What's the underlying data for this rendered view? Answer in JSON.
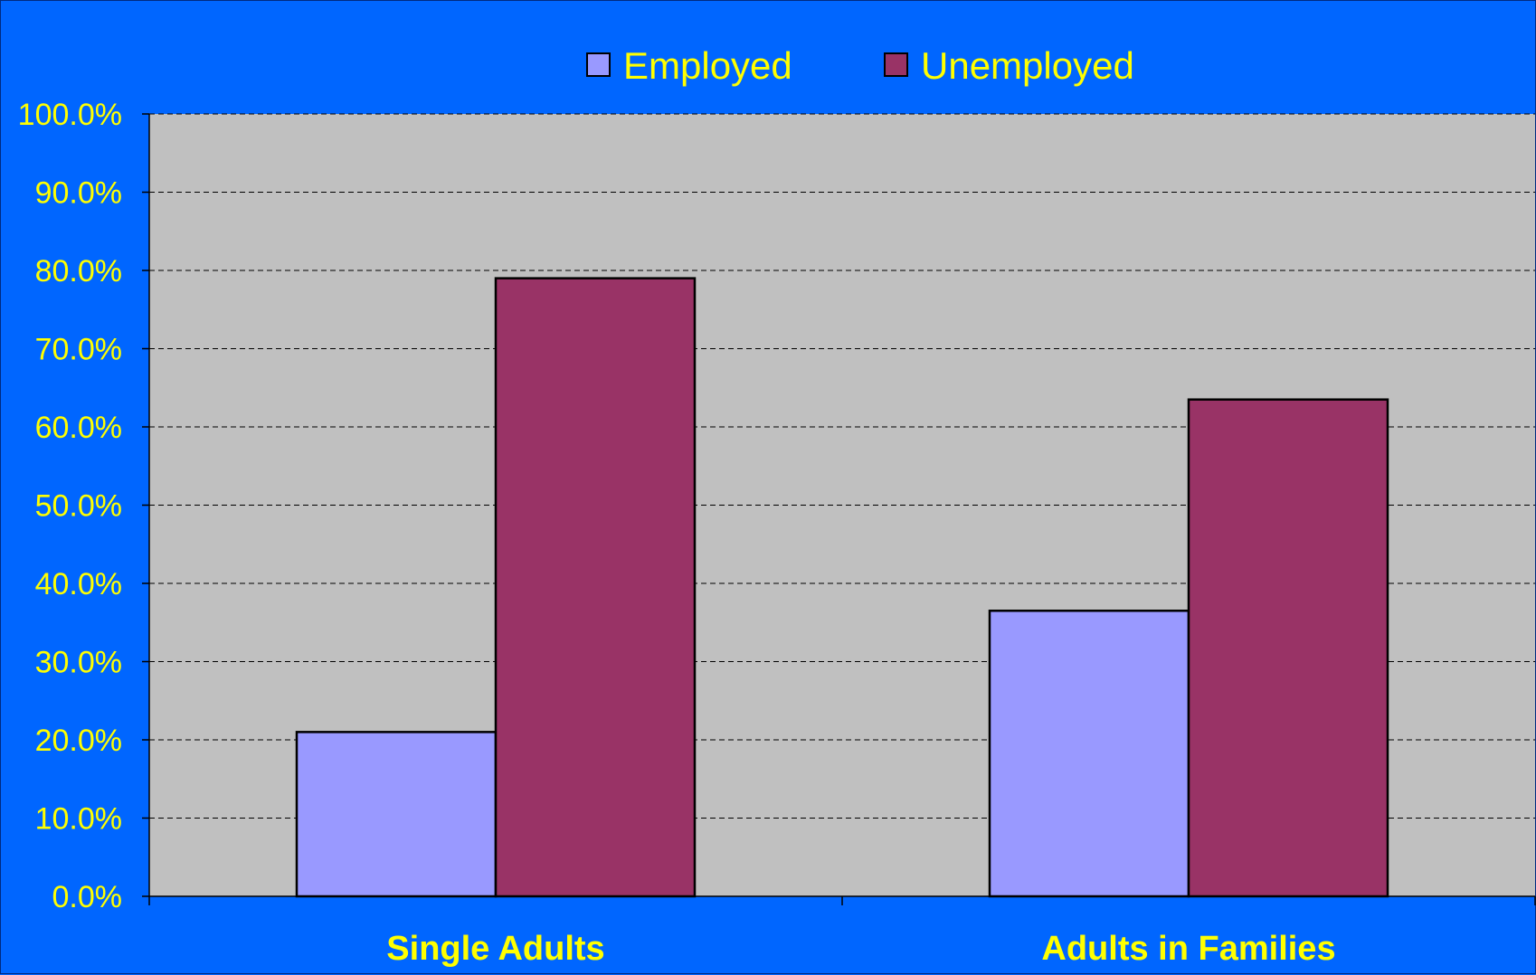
{
  "colors": {
    "background": "#0066ff",
    "plot_area": "#c0c0c0",
    "text": "#ffff00",
    "employed": "#9999ff",
    "unemployed": "#993366"
  },
  "chart_data": {
    "type": "bar",
    "categories": [
      "Single Adults",
      "Adults in Families"
    ],
    "series": [
      {
        "name": "Employed",
        "values": [
          21.0,
          36.5
        ],
        "color": "#9999ff"
      },
      {
        "name": "Unemployed",
        "values": [
          79.0,
          63.5
        ],
        "color": "#993366"
      }
    ],
    "ylim": [
      0,
      100
    ],
    "yticks": [
      "0.0%",
      "10.0%",
      "20.0%",
      "30.0%",
      "40.0%",
      "50.0%",
      "60.0%",
      "70.0%",
      "80.0%",
      "90.0%",
      "100.0%"
    ],
    "grid": true,
    "legend_position": "top"
  }
}
